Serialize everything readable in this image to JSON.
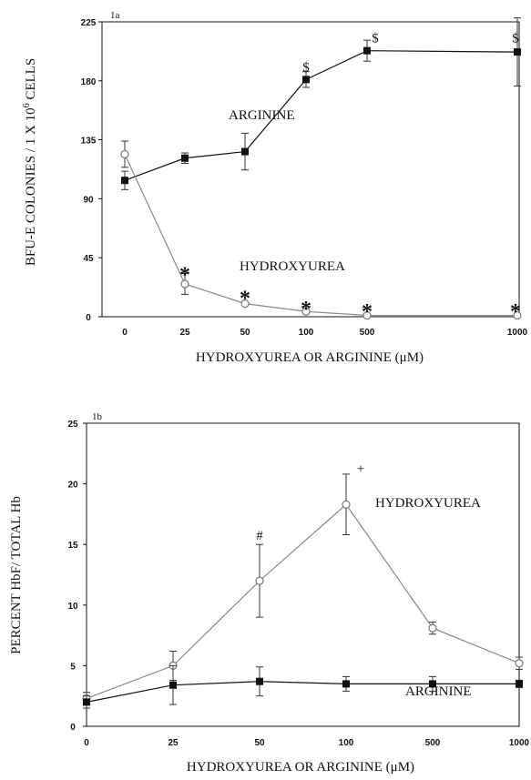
{
  "chart_data": [
    {
      "panel_label": "1a",
      "type": "line",
      "categories": [
        "0",
        "25",
        "50",
        "100",
        "500",
        "1000"
      ],
      "ylim": [
        0,
        225
      ],
      "yticks": [
        "0",
        "45",
        "90",
        "135",
        "180",
        "225"
      ],
      "ylabel_main": "BFU-E COLONIES / 1 X 10",
      "ylabel_sup": "6",
      "ylabel_tail": " CELLS",
      "xlabel_main": "HYDROXYUREA OR ARGININE (",
      "xlabel_mu": "μ",
      "xlabel_tail": "M)",
      "series": [
        {
          "name": "ARGININE",
          "marker": "filled-square",
          "color": "#111111",
          "values": [
            104,
            121,
            126,
            181,
            203,
            202
          ],
          "errors": [
            7,
            4,
            14,
            6,
            8,
            26
          ]
        },
        {
          "name": "HYDROXYUREA",
          "marker": "open-circle",
          "color": "#888888",
          "values": [
            124,
            25,
            10,
            4,
            1,
            1
          ],
          "errors": [
            10,
            8,
            1,
            1,
            0,
            0
          ]
        }
      ],
      "annotations": [
        {
          "text": "$",
          "category_index": 3,
          "y": 190
        },
        {
          "text": "$",
          "category_index": 4,
          "y": 212
        },
        {
          "text": "$",
          "category_index": 5,
          "y": 212
        },
        {
          "text": "*",
          "category_index": 1,
          "y": 35
        },
        {
          "text": "*",
          "category_index": 2,
          "y": 17
        },
        {
          "text": "*",
          "category_index": 3,
          "y": 9
        },
        {
          "text": "*",
          "category_index": 4,
          "y": 7
        },
        {
          "text": "*",
          "category_index": 5,
          "y": 7
        }
      ],
      "grid": false
    },
    {
      "panel_label": "1b",
      "type": "line",
      "categories": [
        "0",
        "25",
        "50",
        "100",
        "500",
        "1000"
      ],
      "ylim": [
        0,
        25
      ],
      "yticks": [
        "0",
        "5",
        "10",
        "15",
        "20",
        "25"
      ],
      "ylabel": "PERCENT HbF/ TOTAL Hb",
      "xlabel_main": "HYDROXYUREA OR ARGININE (",
      "xlabel_mu": "μ",
      "xlabel_tail": "M)",
      "series": [
        {
          "name": "HYDROXYUREA",
          "marker": "open-circle",
          "color": "#888888",
          "values": [
            2.3,
            5.0,
            12.0,
            18.3,
            8.1,
            5.2
          ],
          "errors": [
            0.5,
            1.2,
            3.0,
            2.5,
            0.5,
            0.5
          ]
        },
        {
          "name": "ARGININE",
          "marker": "filled-square",
          "color": "#111111",
          "values": [
            2.0,
            3.4,
            3.7,
            3.5,
            3.5,
            3.5
          ],
          "errors": [
            0.5,
            1.6,
            1.2,
            0.6,
            0.6,
            0.3
          ]
        }
      ],
      "annotations": [
        {
          "text": "#",
          "category_index": 2,
          "y": 15.7
        },
        {
          "text": "+",
          "category_index": 3,
          "y": 21.2
        }
      ],
      "grid": false
    }
  ]
}
